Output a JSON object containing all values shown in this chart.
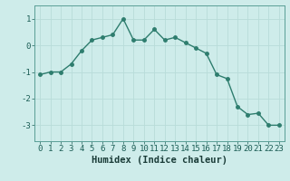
{
  "x": [
    0,
    1,
    2,
    3,
    4,
    5,
    6,
    7,
    8,
    9,
    10,
    11,
    12,
    13,
    14,
    15,
    16,
    17,
    18,
    19,
    20,
    21,
    22,
    23
  ],
  "y": [
    -1.1,
    -1.0,
    -1.0,
    -0.7,
    -0.2,
    0.2,
    0.3,
    0.4,
    1.0,
    0.2,
    0.2,
    0.6,
    0.2,
    0.3,
    0.1,
    -0.1,
    -0.3,
    -1.1,
    -1.25,
    -2.3,
    -2.6,
    -2.55,
    -3.0,
    -3.0
  ],
  "line_color": "#2e7d6e",
  "marker": "o",
  "marker_size": 2.5,
  "linewidth": 1.0,
  "xlabel": "Humidex (Indice chaleur)",
  "xlim": [
    -0.5,
    23.5
  ],
  "ylim": [
    -3.6,
    1.5
  ],
  "yticks": [
    -3,
    -2,
    -1,
    0,
    1
  ],
  "xticks": [
    0,
    1,
    2,
    3,
    4,
    5,
    6,
    7,
    8,
    9,
    10,
    11,
    12,
    13,
    14,
    15,
    16,
    17,
    18,
    19,
    20,
    21,
    22,
    23
  ],
  "bg_color": "#ceecea",
  "grid_color": "#b8dcd9",
  "spine_color": "#5a9e96",
  "tick_color": "#1a5c54",
  "font_color": "#1a3c38",
  "xlabel_fontsize": 7.5,
  "tick_fontsize": 6.5
}
